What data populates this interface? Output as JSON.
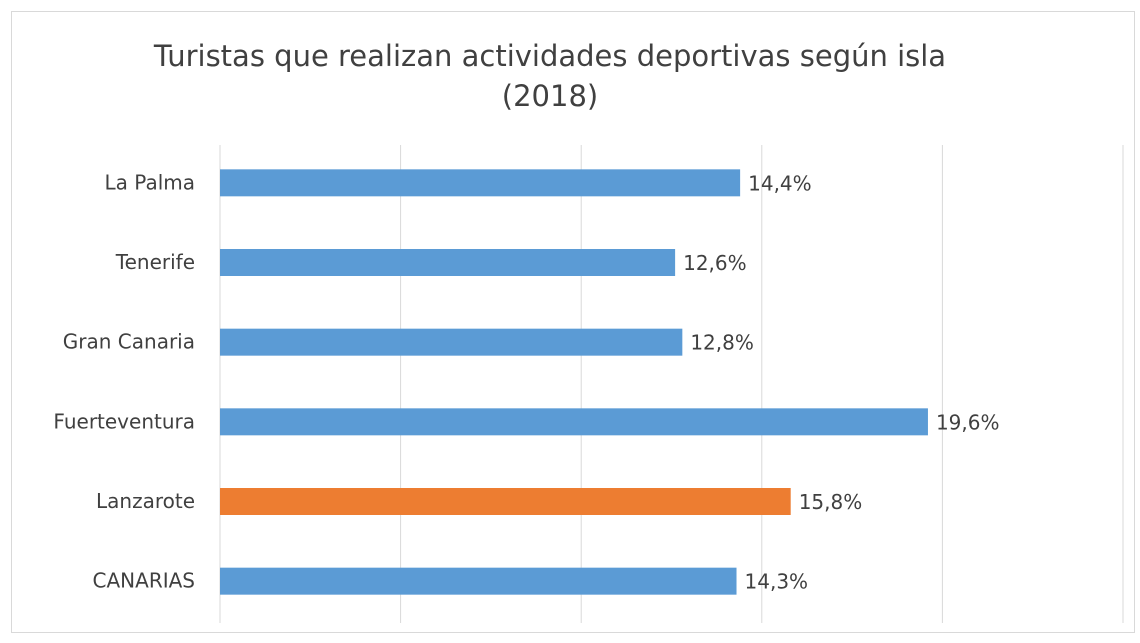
{
  "chart_data": {
    "type": "bar",
    "orientation": "horizontal",
    "title": "Turistas que realizan actividades deportivas según isla (2018)",
    "categories": [
      "La Palma",
      "Tenerife",
      "Gran Canaria",
      "Fuerteventura",
      "Lanzarote",
      "CANARIAS"
    ],
    "values": [
      14.4,
      12.6,
      12.8,
      19.6,
      15.8,
      14.3
    ],
    "value_labels": [
      "14,4%",
      "12,6%",
      "12,8%",
      "19,6%",
      "15,8%",
      "14,3%"
    ],
    "colors": [
      "#5b9bd5",
      "#5b9bd5",
      "#5b9bd5",
      "#5b9bd5",
      "#ed7d31",
      "#5b9bd5"
    ],
    "xlim": [
      0,
      25
    ],
    "xticks": [
      0,
      5,
      10,
      15,
      20,
      25
    ],
    "grid": true
  }
}
